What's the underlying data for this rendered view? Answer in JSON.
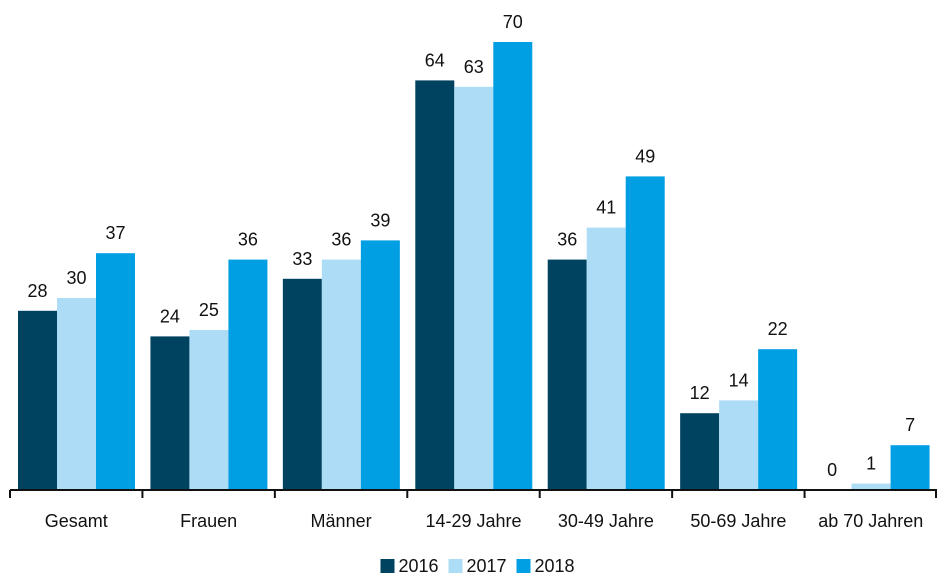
{
  "chart_data": {
    "type": "bar",
    "title": "",
    "xlabel": "",
    "ylabel": "",
    "ylim": [
      0,
      72
    ],
    "grid": false,
    "legend_position": "bottom-center",
    "categories": [
      "Gesamt",
      "Frauen",
      "Männer",
      "14-29 Jahre",
      "30-49 Jahre",
      "50-69 Jahre",
      "ab 70 Jahren"
    ],
    "series": [
      {
        "name": "2016",
        "color": "#004360",
        "values": [
          28,
          24,
          33,
          64,
          36,
          12,
          0
        ]
      },
      {
        "name": "2017",
        "color": "#addcf6",
        "values": [
          30,
          25,
          36,
          63,
          41,
          14,
          1
        ]
      },
      {
        "name": "2018",
        "color": "#009fe3",
        "values": [
          37,
          36,
          39,
          70,
          49,
          22,
          7
        ]
      }
    ]
  }
}
